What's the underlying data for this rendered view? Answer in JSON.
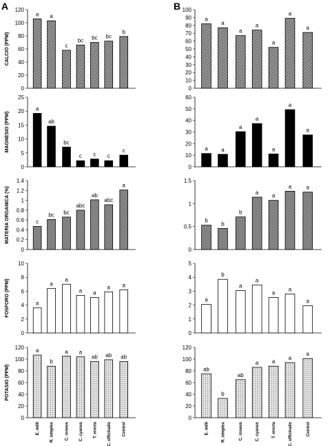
{
  "panels": [
    "A",
    "B"
  ],
  "categories": [
    "E. milli",
    "R. simplex",
    "C. roseus",
    "C. cyanus",
    "T. erecta",
    "C. officinalis",
    "Control"
  ],
  "chart_data": [
    {
      "type": "bar",
      "panel": "A",
      "ylabel": "CALCIO (PPM)",
      "ylim": [
        0,
        120
      ],
      "yticks": [
        0,
        20,
        40,
        60,
        80,
        100,
        120
      ],
      "fill": "hatch-dark",
      "values": [
        106,
        103,
        58,
        66,
        70,
        72,
        79
      ],
      "labels": [
        "a",
        "a",
        "c",
        "bc",
        "bc",
        "bc",
        "b"
      ]
    },
    {
      "type": "bar",
      "panel": "A",
      "ylabel": "MAGNESIO (PPM)",
      "ylim": [
        0,
        25
      ],
      "yticks": [
        0,
        5,
        10,
        15,
        20,
        25
      ],
      "fill": "#000000",
      "values": [
        19.2,
        14.6,
        7.1,
        2.2,
        2.8,
        2.2,
        4.2
      ],
      "labels": [
        "a",
        "ab",
        "bc",
        "c",
        "c",
        "c",
        "c"
      ]
    },
    {
      "type": "bar",
      "panel": "A",
      "ylabel": "MATERIA ORGANICA (%)",
      "ylim": [
        0,
        1.4
      ],
      "yticks": [
        0,
        0.2,
        0.4,
        0.6,
        0.8,
        1,
        1.2,
        1.4
      ],
      "fill": "hatch-light",
      "values": [
        0.47,
        0.61,
        0.66,
        0.8,
        1.01,
        0.91,
        1.21
      ],
      "labels": [
        "c",
        "bc",
        "bc",
        "abc",
        "ab",
        "abc",
        "a"
      ]
    },
    {
      "type": "bar",
      "panel": "A",
      "ylabel": "FOSFORO (PPM)",
      "ylim": [
        0,
        10
      ],
      "yticks": [
        0,
        2,
        4,
        6,
        8,
        10
      ],
      "fill": "#ffffff",
      "values": [
        3.6,
        6.4,
        7.0,
        5.4,
        5.1,
        5.9,
        6.2
      ],
      "labels": [
        "a",
        "a",
        "a",
        "a",
        "a",
        "a",
        "a"
      ]
    },
    {
      "type": "bar",
      "panel": "A",
      "ylabel": "POTASIO (PPM)",
      "ylim": [
        0,
        120
      ],
      "yticks": [
        0,
        20,
        40,
        60,
        80,
        100,
        120
      ],
      "fill": "dots",
      "values": [
        107,
        88,
        105,
        104,
        96,
        99,
        96
      ],
      "labels": [
        "a",
        "b",
        "a",
        "a",
        "ab",
        "ab",
        "ab"
      ]
    },
    {
      "type": "bar",
      "panel": "B",
      "ylabel": "",
      "ylim": [
        0,
        100
      ],
      "yticks": [
        0,
        10,
        20,
        30,
        40,
        50,
        60,
        70,
        80,
        90,
        100
      ],
      "fill": "hatch-dark",
      "values": [
        82,
        77,
        67,
        74,
        52,
        89,
        71
      ],
      "labels": [
        "a",
        "a",
        "a",
        "a",
        "a",
        "a",
        "a"
      ]
    },
    {
      "type": "bar",
      "panel": "B",
      "ylabel": "",
      "ylim": [
        0,
        60
      ],
      "yticks": [
        0,
        10,
        20,
        30,
        40,
        50,
        60
      ],
      "fill": "#000000",
      "values": [
        11.5,
        10.8,
        30.3,
        37.3,
        11.1,
        49.3,
        27.5
      ],
      "labels": [
        "a",
        "a",
        "a",
        "a",
        "a",
        "a",
        "a"
      ]
    },
    {
      "type": "bar",
      "panel": "B",
      "ylabel": "",
      "ylim": [
        0,
        1.5
      ],
      "yticks": [
        0,
        0.5,
        1,
        1.5
      ],
      "fill": "hatch-light",
      "values": [
        0.53,
        0.46,
        0.71,
        1.14,
        1.07,
        1.27,
        1.25
      ],
      "labels": [
        "b",
        "b",
        "b",
        "a",
        "a",
        "a",
        "a"
      ]
    },
    {
      "type": "bar",
      "panel": "B",
      "ylabel": "",
      "ylim": [
        0,
        5
      ],
      "yticks": [
        0,
        1,
        2,
        3,
        4,
        5
      ],
      "fill": "#ffffff",
      "values": [
        2.05,
        3.85,
        3.05,
        3.45,
        2.55,
        2.8,
        1.95
      ],
      "labels": [
        "a",
        "b",
        "a",
        "a",
        "a",
        "a",
        "a"
      ]
    },
    {
      "type": "bar",
      "panel": "B",
      "ylabel": "",
      "ylim": [
        0,
        120
      ],
      "yticks": [
        0,
        20,
        40,
        60,
        80,
        100,
        120
      ],
      "fill": "dots",
      "values": [
        75,
        33,
        65,
        86,
        88,
        94,
        101
      ],
      "labels": [
        "ab",
        "b",
        "ab",
        "a",
        "a",
        "a",
        "a"
      ]
    }
  ]
}
